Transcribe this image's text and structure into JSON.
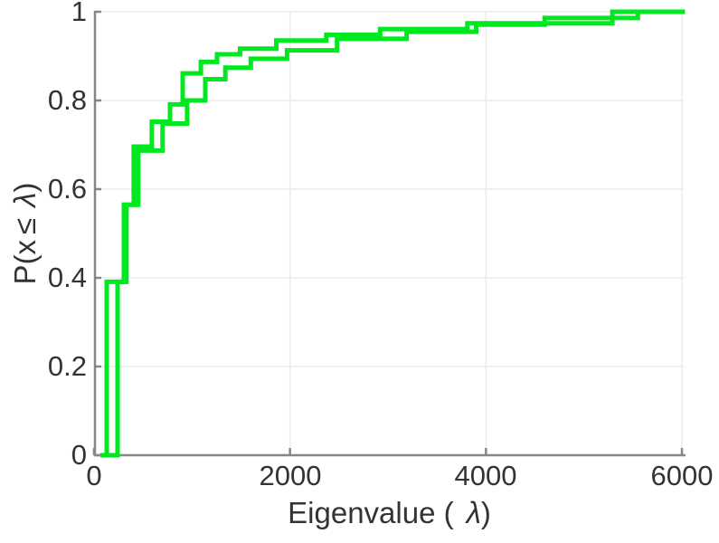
{
  "chart_data": {
    "type": "line",
    "subtype": "ecdf-step",
    "title": "",
    "xlabel_parts": {
      "pre": "Eigenvalue (",
      "sym": "λ",
      "post": ")"
    },
    "ylabel_parts": {
      "pre": "P(x",
      "leq": "≤",
      "sym": "λ",
      "post": ")"
    },
    "xlim": [
      0,
      6030
    ],
    "ylim": [
      0,
      1
    ],
    "xticks": [
      0,
      2000,
      4000,
      6000
    ],
    "xtick_labels": [
      "0",
      "2000",
      "4000",
      "6000"
    ],
    "yticks": [
      0,
      0.2,
      0.4,
      0.6,
      0.8,
      1
    ],
    "ytick_labels": [
      "0",
      "0.2",
      "0.4",
      "0.6",
      "0.8",
      "1"
    ],
    "grid": true,
    "legend": null,
    "line_color": "#00e81f",
    "line_width": 5,
    "axis_color": "#878787",
    "grid_color": "#ebebeb",
    "text_color": "#333333",
    "background": "#ffffff",
    "series": [
      {
        "name": "ecdf-curve-1",
        "start_x": 129,
        "end_x": 6030,
        "points": [
          {
            "x": 129,
            "f": 0.391
          },
          {
            "x": 305,
            "f": 0.565
          },
          {
            "x": 405,
            "f": 0.696
          },
          {
            "x": 590,
            "f": 0.752
          },
          {
            "x": 775,
            "f": 0.791
          },
          {
            "x": 905,
            "f": 0.861
          },
          {
            "x": 1090,
            "f": 0.887
          },
          {
            "x": 1255,
            "f": 0.904
          },
          {
            "x": 1490,
            "f": 0.917
          },
          {
            "x": 1860,
            "f": 0.935
          },
          {
            "x": 2370,
            "f": 0.948
          },
          {
            "x": 2920,
            "f": 0.961
          },
          {
            "x": 3810,
            "f": 0.974
          },
          {
            "x": 5290,
            "f": 1.0
          }
        ]
      },
      {
        "name": "ecdf-curve-2",
        "start_x": 65,
        "end_x": 6030,
        "points": [
          {
            "x": 240,
            "f": 0.391
          },
          {
            "x": 330,
            "f": 0.565
          },
          {
            "x": 450,
            "f": 0.687
          },
          {
            "x": 700,
            "f": 0.748
          },
          {
            "x": 950,
            "f": 0.8
          },
          {
            "x": 1135,
            "f": 0.848
          },
          {
            "x": 1340,
            "f": 0.874
          },
          {
            "x": 1600,
            "f": 0.894
          },
          {
            "x": 1970,
            "f": 0.913
          },
          {
            "x": 2480,
            "f": 0.939
          },
          {
            "x": 3190,
            "f": 0.955
          },
          {
            "x": 3900,
            "f": 0.971
          },
          {
            "x": 4600,
            "f": 0.986
          },
          {
            "x": 5550,
            "f": 1.0
          }
        ]
      }
    ]
  }
}
